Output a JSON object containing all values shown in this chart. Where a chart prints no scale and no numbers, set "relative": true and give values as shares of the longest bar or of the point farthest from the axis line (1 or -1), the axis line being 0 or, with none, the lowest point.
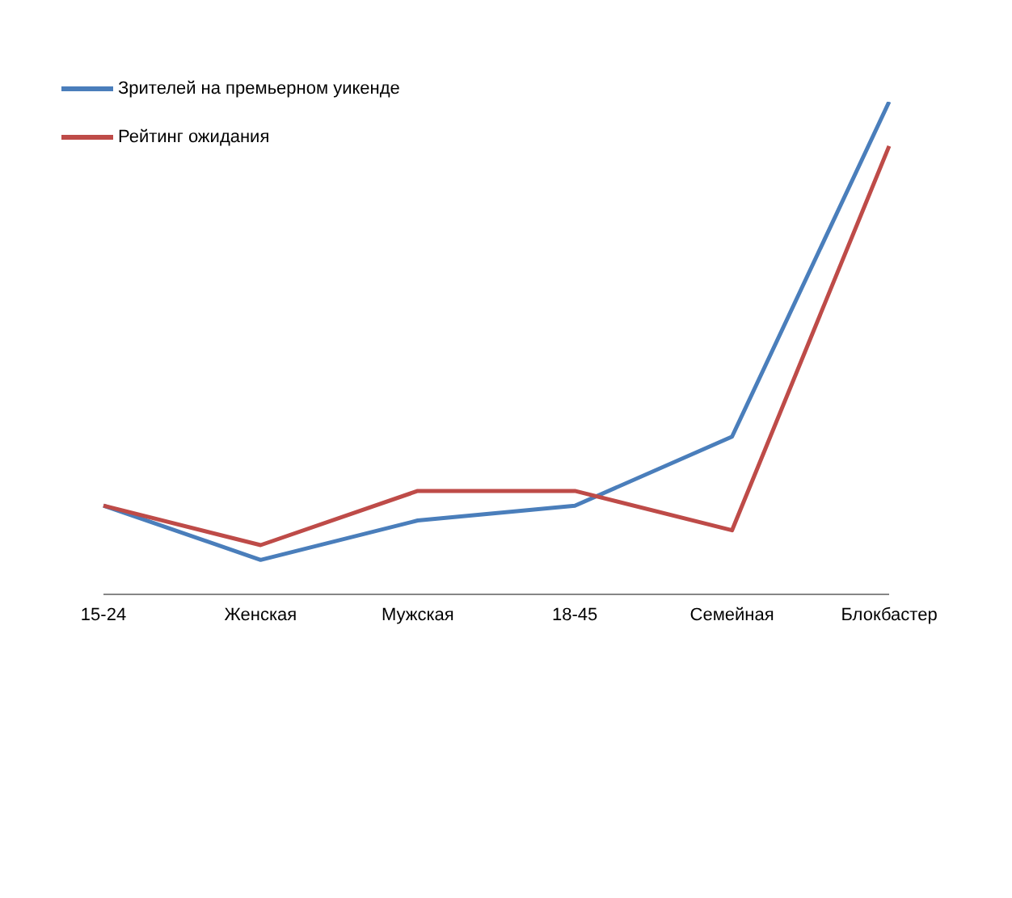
{
  "chart_data": {
    "type": "line",
    "relative": true,
    "categories": [
      "15-24",
      "Женская",
      "Мужская",
      "18-45",
      "Семейная",
      "Блокбастер"
    ],
    "series": [
      {
        "name": "Зрителей на премьерном уикенде",
        "color": "#4a7ebb",
        "values": [
          0.18,
          0.07,
          0.15,
          0.18,
          0.32,
          1
        ]
      },
      {
        "name": "Рейтинг ожидания",
        "color": "#be4b48",
        "values": [
          0.18,
          0.1,
          0.21,
          0.21,
          0.13,
          0.91
        ]
      }
    ],
    "legend": "top left",
    "grid": false,
    "marker": "none",
    "line_style": "solid"
  }
}
